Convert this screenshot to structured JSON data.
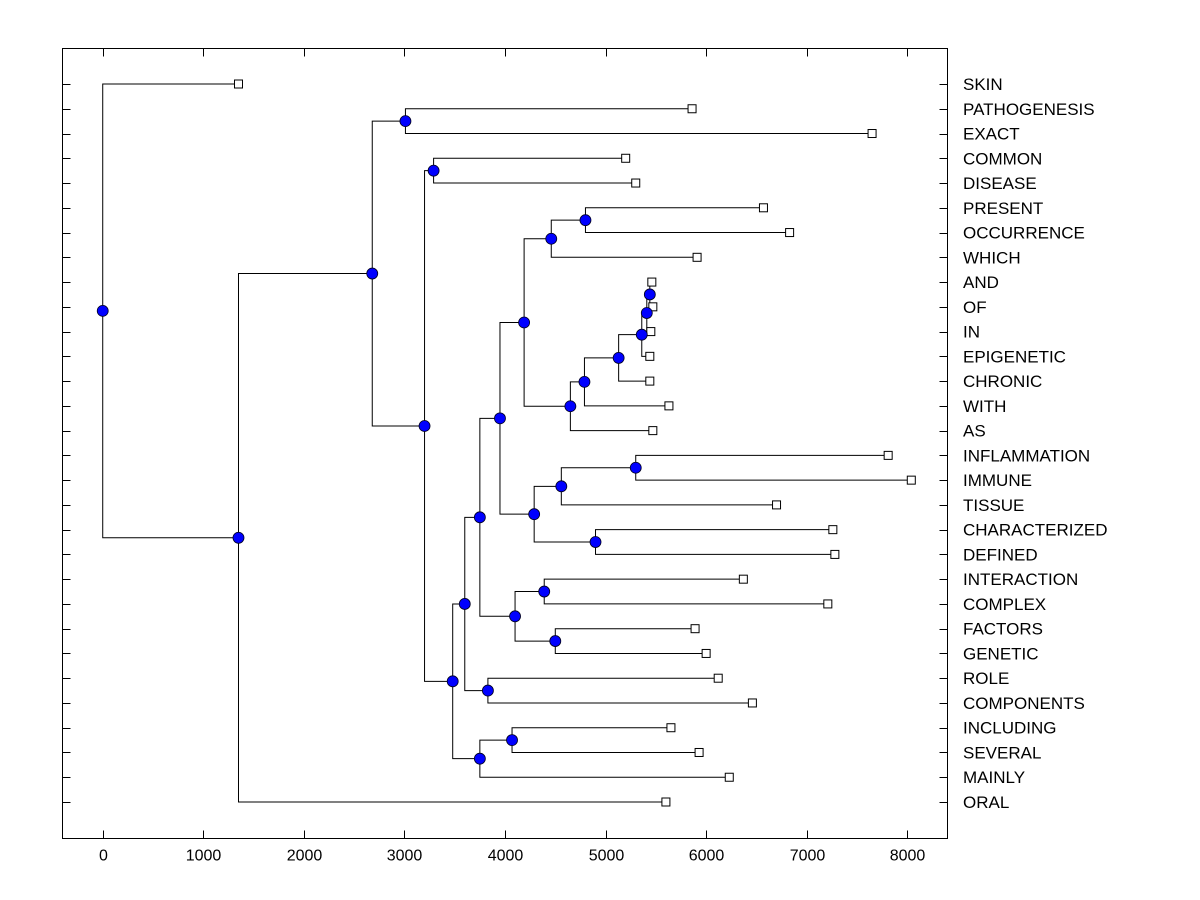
{
  "chart_data": {
    "type": "dendrogram",
    "title": "",
    "xlabel": "",
    "ylabel": "",
    "xlim": [
      -400,
      8400
    ],
    "xticks": [
      0,
      1000,
      2000,
      3000,
      4000,
      5000,
      6000,
      7000,
      8000
    ],
    "xtick_labels": [
      "0",
      "1000",
      "2000",
      "3000",
      "4000",
      "5000",
      "6000",
      "7000",
      "8000"
    ],
    "grid": false,
    "colors": {
      "node_fill": "#0000ff",
      "leaf_fill": "#ffffff",
      "line": "#000000"
    },
    "leaves": [
      {
        "label": "SKIN",
        "value": 1350
      },
      {
        "label": "PATHOGENESIS",
        "value": 5860
      },
      {
        "label": "EXACT",
        "value": 7650
      },
      {
        "label": "COMMON",
        "value": 5200
      },
      {
        "label": "DISEASE",
        "value": 5300
      },
      {
        "label": "PRESENT",
        "value": 6570
      },
      {
        "label": "OCCURRENCE",
        "value": 6830
      },
      {
        "label": "WHICH",
        "value": 5910
      },
      {
        "label": "AND",
        "value": 5460
      },
      {
        "label": "OF",
        "value": 5470
      },
      {
        "label": "IN",
        "value": 5450
      },
      {
        "label": "EPIGENETIC",
        "value": 5440
      },
      {
        "label": "CHRONIC",
        "value": 5440
      },
      {
        "label": "WITH",
        "value": 5630
      },
      {
        "label": "AS",
        "value": 5470
      },
      {
        "label": "INFLAMMATION",
        "value": 7810
      },
      {
        "label": "IMMUNE",
        "value": 8040
      },
      {
        "label": "TISSUE",
        "value": 6700
      },
      {
        "label": "CHARACTERIZED",
        "value": 7260
      },
      {
        "label": "DEFINED",
        "value": 7280
      },
      {
        "label": "INTERACTION",
        "value": 6370
      },
      {
        "label": "COMPLEX",
        "value": 7210
      },
      {
        "label": "FACTORS",
        "value": 5890
      },
      {
        "label": "GENETIC",
        "value": 6000
      },
      {
        "label": "ROLE",
        "value": 6120
      },
      {
        "label": "COMPONENTS",
        "value": 6460
      },
      {
        "label": "INCLUDING",
        "value": 5650
      },
      {
        "label": "SEVERAL",
        "value": 5930
      },
      {
        "label": "MAINLY",
        "value": 6230
      },
      {
        "label": "ORAL",
        "value": 5600
      }
    ],
    "nodes": [
      {
        "id": "root",
        "value": 0,
        "children": [
          "L:SKIN",
          "A"
        ]
      },
      {
        "id": "A",
        "value": 1350,
        "children": [
          "B",
          "L:ORAL"
        ]
      },
      {
        "id": "B",
        "value": 2680,
        "children": [
          "C",
          "D"
        ]
      },
      {
        "id": "C",
        "value": 3010,
        "children": [
          "L:PATHOGENESIS",
          "L:EXACT"
        ]
      },
      {
        "id": "D",
        "value": 3200,
        "children": [
          "E",
          "F"
        ]
      },
      {
        "id": "E",
        "value": 3290,
        "children": [
          "L:COMMON",
          "L:DISEASE"
        ]
      },
      {
        "id": "F",
        "value": 3480,
        "children": [
          "G",
          "AA"
        ]
      },
      {
        "id": "G",
        "value": 3600,
        "children": [
          "H",
          "Z"
        ]
      },
      {
        "id": "H",
        "value": 3750,
        "children": [
          "I",
          "W"
        ]
      },
      {
        "id": "I",
        "value": 3950,
        "children": [
          "J",
          "S"
        ]
      },
      {
        "id": "J",
        "value": 4190,
        "children": [
          "K",
          "M"
        ]
      },
      {
        "id": "K",
        "value": 4460,
        "children": [
          "Lp",
          "L:WHICH"
        ]
      },
      {
        "id": "Lp",
        "value": 4800,
        "children": [
          "L:PRESENT",
          "L:OCCURRENCE"
        ]
      },
      {
        "id": "M",
        "value": 4650,
        "children": [
          "N",
          "L:AS"
        ]
      },
      {
        "id": "N",
        "value": 4790,
        "children": [
          "O",
          "L:WITH"
        ]
      },
      {
        "id": "O",
        "value": 5130,
        "children": [
          "P",
          "L:CHRONIC"
        ]
      },
      {
        "id": "P",
        "value": 5360,
        "children": [
          "Q",
          "L:EPIGENETIC"
        ]
      },
      {
        "id": "Q",
        "value": 5410,
        "children": [
          "R",
          "L:IN"
        ]
      },
      {
        "id": "R",
        "value": 5440,
        "children": [
          "L:AND",
          "L:OF"
        ]
      },
      {
        "id": "S",
        "value": 4290,
        "children": [
          "T",
          "V"
        ]
      },
      {
        "id": "T",
        "value": 4560,
        "children": [
          "U",
          "L:TISSUE"
        ]
      },
      {
        "id": "U",
        "value": 5300,
        "children": [
          "L:INFLAMMATION",
          "L:IMMUNE"
        ]
      },
      {
        "id": "V",
        "value": 4900,
        "children": [
          "L:CHARACTERIZED",
          "L:DEFINED"
        ]
      },
      {
        "id": "W",
        "value": 4100,
        "children": [
          "X",
          "Y"
        ]
      },
      {
        "id": "X",
        "value": 4390,
        "children": [
          "L:INTERACTION",
          "L:COMPLEX"
        ]
      },
      {
        "id": "Y",
        "value": 4500,
        "children": [
          "L:FACTORS",
          "L:GENETIC"
        ]
      },
      {
        "id": "Z",
        "value": 3830,
        "children": [
          "L:ROLE",
          "L:COMPONENTS"
        ]
      },
      {
        "id": "AA",
        "value": 3750,
        "children": [
          "AB",
          "L:MAINLY"
        ]
      },
      {
        "id": "AB",
        "value": 4070,
        "children": [
          "L:INCLUDING",
          "L:SEVERAL"
        ]
      }
    ]
  }
}
